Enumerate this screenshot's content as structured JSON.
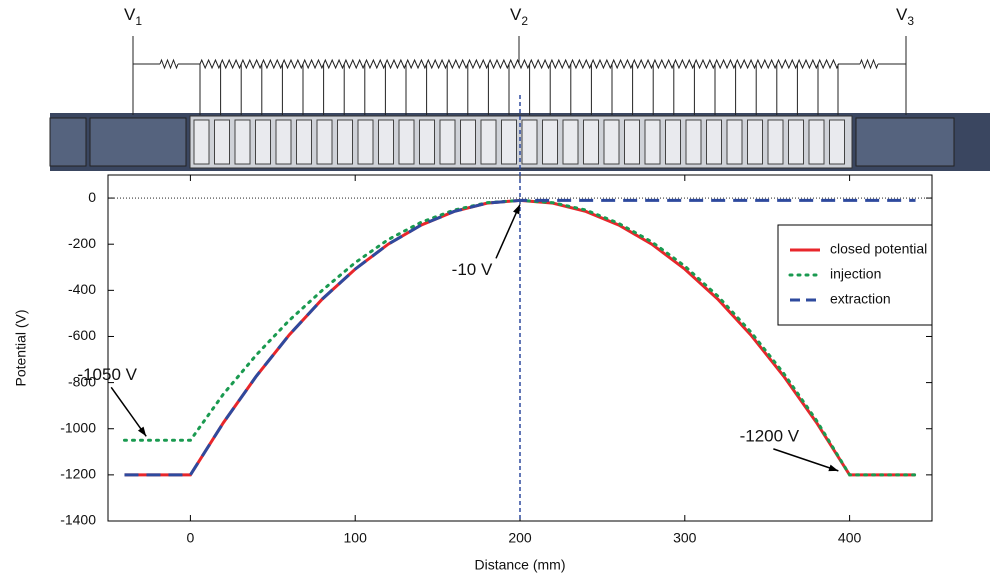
{
  "diagram": {
    "nodes": [
      {
        "main": "V",
        "sub": "1"
      },
      {
        "main": "V",
        "sub": "2"
      },
      {
        "main": "V",
        "sub": "3"
      }
    ]
  },
  "chart_data": {
    "type": "line",
    "xlabel": "Distance (mm)",
    "ylabel": "Potential (V)",
    "xlim": [
      -50,
      450
    ],
    "ylim": [
      -1400,
      100
    ],
    "xticks": [
      0,
      100,
      200,
      300,
      400
    ],
    "yticks": [
      0,
      -200,
      -400,
      -600,
      -800,
      -1000,
      -1200,
      -1400
    ],
    "legend": "upper right",
    "series": [
      {
        "name": "closed potential",
        "color": "#e8262b",
        "style": "solid",
        "x": [
          -40,
          0,
          20,
          40,
          60,
          80,
          100,
          120,
          140,
          160,
          180,
          200,
          220,
          240,
          260,
          280,
          300,
          320,
          340,
          360,
          380,
          400,
          440
        ],
        "values": [
          -1200,
          -1200,
          -974,
          -772,
          -593,
          -438,
          -308,
          -200,
          -117,
          -58,
          -22,
          -10,
          -22,
          -58,
          -117,
          -200,
          -308,
          -438,
          -593,
          -772,
          -974,
          -1200,
          -1200
        ]
      },
      {
        "name": "injection",
        "color": "#1a9a50",
        "style": "dotted",
        "x": [
          -40,
          0,
          20,
          40,
          60,
          80,
          100,
          120,
          140,
          160,
          180,
          200,
          220,
          240,
          260,
          280,
          300,
          320,
          340,
          360,
          380,
          400,
          440
        ],
        "values": [
          -1050,
          -1050,
          -850,
          -680,
          -530,
          -400,
          -280,
          -180,
          -105,
          -52,
          -20,
          -10,
          -20,
          -52,
          -110,
          -190,
          -295,
          -425,
          -580,
          -760,
          -965,
          -1200,
          -1200
        ]
      },
      {
        "name": "extraction",
        "color": "#2e4a9e",
        "style": "dashed",
        "x": [
          -40,
          0,
          20,
          40,
          60,
          80,
          100,
          120,
          140,
          160,
          180,
          200,
          440
        ],
        "values": [
          -1200,
          -1200,
          -974,
          -772,
          -593,
          -438,
          -308,
          -200,
          -117,
          -58,
          -22,
          -10,
          -10
        ]
      }
    ],
    "annotations": [
      {
        "text": "-10 V",
        "x": 200,
        "y": -10
      },
      {
        "text": "-1050 V",
        "x": -25,
        "y": -1050
      },
      {
        "text": "-1200 V",
        "x": 395,
        "y": -1200
      }
    ]
  }
}
